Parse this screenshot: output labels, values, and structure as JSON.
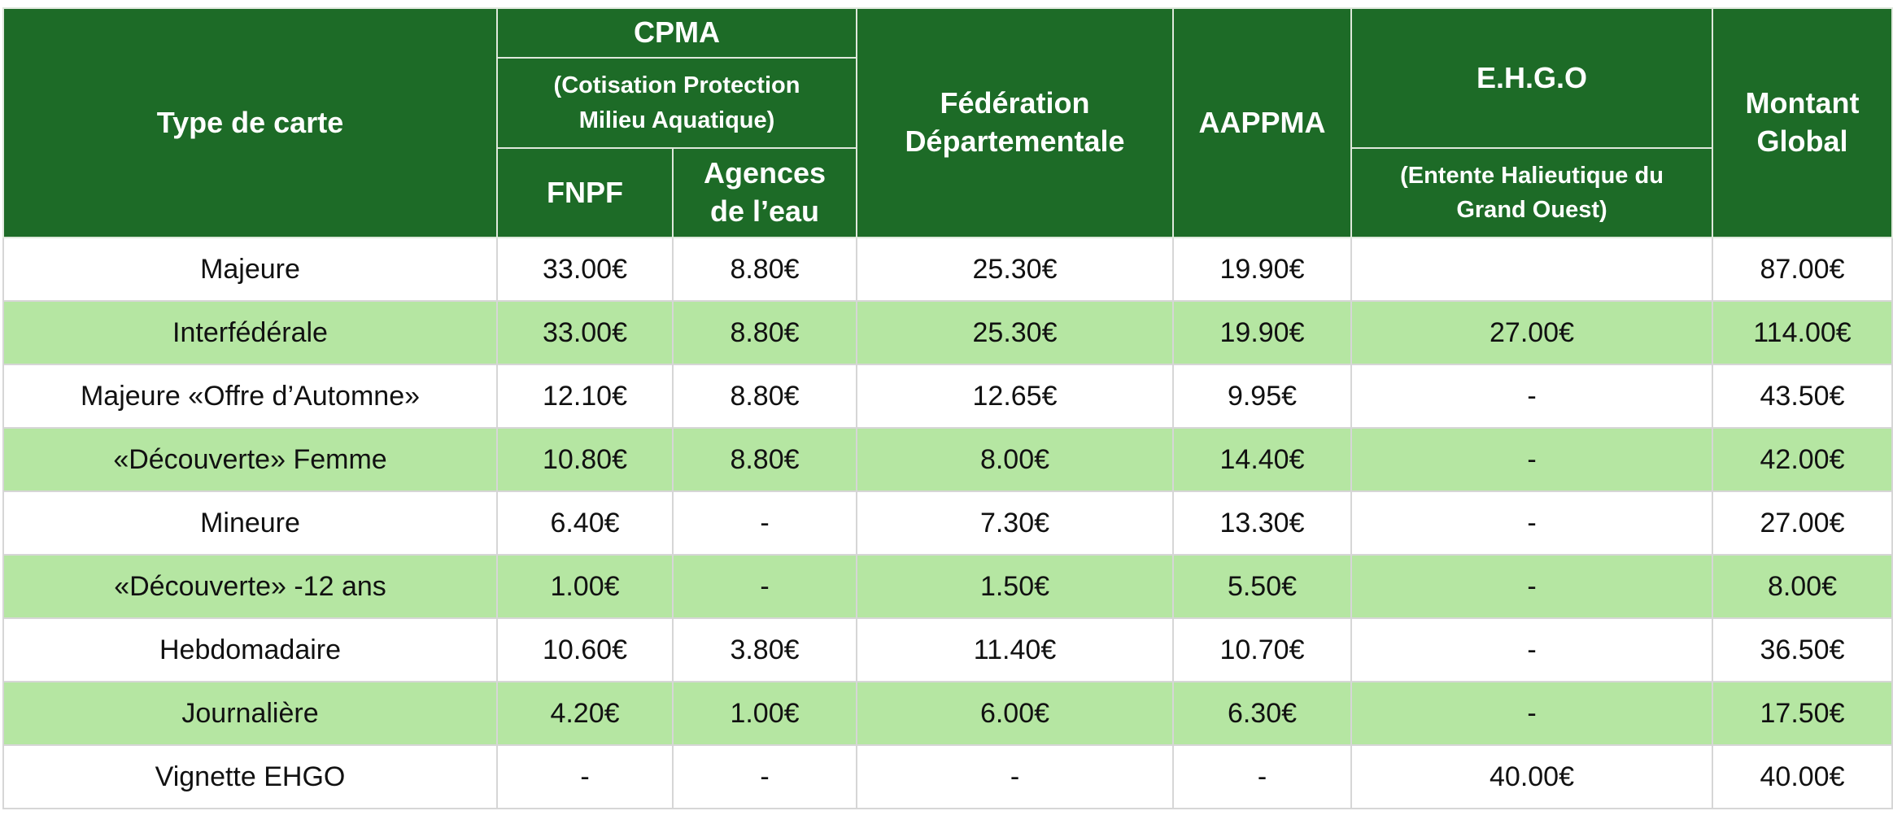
{
  "header": {
    "type_de_carte": "Type de carte",
    "cpma": "CPMA",
    "cpma_full": "(Cotisation Protection Milieu Aquatique)",
    "fnpf": "FNPF",
    "agences": "Agences de l’eau",
    "federation": "Fédération Départementale",
    "aappma": "AAPPMA",
    "ehgo": "E.H.G.O",
    "ehgo_full": "(Entente Halieutique du Grand Ouest)",
    "montant": "Montant Global"
  },
  "colors": {
    "header_bg": "#1d6b27",
    "alt_row_bg": "#b5e6a2"
  },
  "rows": [
    {
      "type": "Majeure",
      "fnpf": "33.00€",
      "agences": "8.80€",
      "federation": "25.30€",
      "aappma": "19.90€",
      "ehgo": "",
      "montant": "87.00€"
    },
    {
      "type": "Interfédérale",
      "fnpf": "33.00€",
      "agences": "8.80€",
      "federation": "25.30€",
      "aappma": "19.90€",
      "ehgo": "27.00€",
      "montant": "114.00€"
    },
    {
      "type": "Majeure «Offre d’Automne»",
      "fnpf": "12.10€",
      "agences": "8.80€",
      "federation": "12.65€",
      "aappma": "9.95€",
      "ehgo": "-",
      "montant": "43.50€"
    },
    {
      "type": "«Découverte» Femme",
      "fnpf": "10.80€",
      "agences": "8.80€",
      "federation": "8.00€",
      "aappma": "14.40€",
      "ehgo": "-",
      "montant": "42.00€"
    },
    {
      "type": "Mineure",
      "fnpf": "6.40€",
      "agences": "-",
      "federation": "7.30€",
      "aappma": "13.30€",
      "ehgo": "-",
      "montant": "27.00€"
    },
    {
      "type": "«Découverte» -12 ans",
      "fnpf": "1.00€",
      "agences": "-",
      "federation": "1.50€",
      "aappma": "5.50€",
      "ehgo": "-",
      "montant": "8.00€"
    },
    {
      "type": "Hebdomadaire",
      "fnpf": "10.60€",
      "agences": "3.80€",
      "federation": "11.40€",
      "aappma": "10.70€",
      "ehgo": "-",
      "montant": "36.50€"
    },
    {
      "type": "Journalière",
      "fnpf": "4.20€",
      "agences": "1.00€",
      "federation": "6.00€",
      "aappma": "6.30€",
      "ehgo": "-",
      "montant": "17.50€"
    },
    {
      "type": "Vignette EHGO",
      "fnpf": "-",
      "agences": "-",
      "federation": "-",
      "aappma": "-",
      "ehgo": "40.00€",
      "montant": "40.00€"
    }
  ]
}
